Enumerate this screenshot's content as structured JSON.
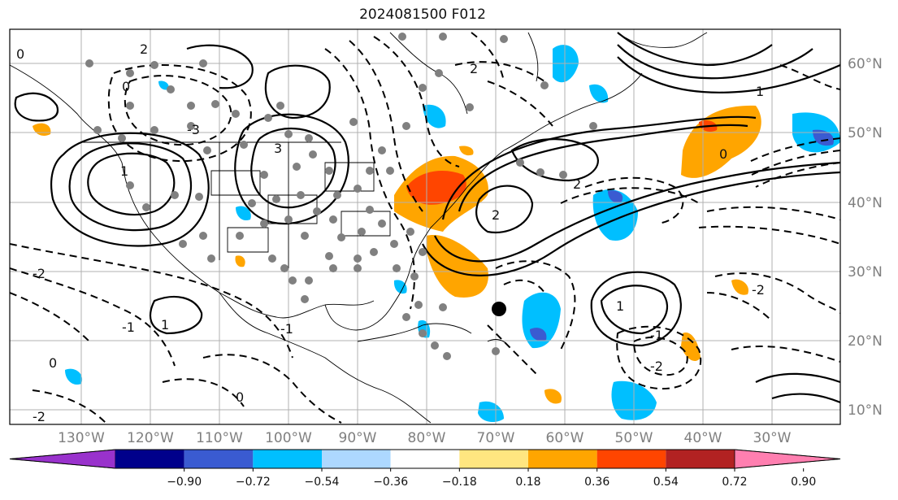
{
  "title": "2024081500 F012",
  "lat_labels": [
    "60°N",
    "50°N",
    "40°N",
    "30°N",
    "20°N",
    "10°N"
  ],
  "lon_labels": [
    "130°W",
    "120°W",
    "110°W",
    "100°W",
    "90°W",
    "80°W",
    "70°W",
    "60°W",
    "50°W",
    "40°W",
    "30°W"
  ],
  "contour_labels": [
    "0",
    "2",
    "-2",
    "1",
    "-1",
    "-3",
    "3",
    "0",
    "-2",
    "2",
    "1",
    "-1",
    "0",
    "2",
    "-2",
    "1",
    "0",
    "-1",
    "0",
    "-2",
    "1",
    "-1",
    "2",
    "-2"
  ],
  "colorbar": {
    "tick_labels": [
      "−0.90",
      "−0.72",
      "−0.54",
      "−0.36",
      "−0.18",
      "0.18",
      "0.36",
      "0.54",
      "0.72",
      "0.90"
    ],
    "colors": [
      "#9932cc",
      "#00008b",
      "#3a5bd1",
      "#00bfff",
      "#add8ff",
      "#ffffff",
      "#ffe680",
      "#ffa500",
      "#ff4500",
      "#b22222",
      "#ff7fb0"
    ]
  },
  "colors": {
    "frame": "#000000",
    "grid": "#b0b0b0",
    "axis_label": "#7f7f7f",
    "positive_fill": "#ffa500",
    "strong_positive_fill": "#ff4500",
    "negative_fill": "#00bfff",
    "strong_negative_fill": "#3a5bd1",
    "marker": "#808080",
    "storm_marker": "#000000"
  }
}
